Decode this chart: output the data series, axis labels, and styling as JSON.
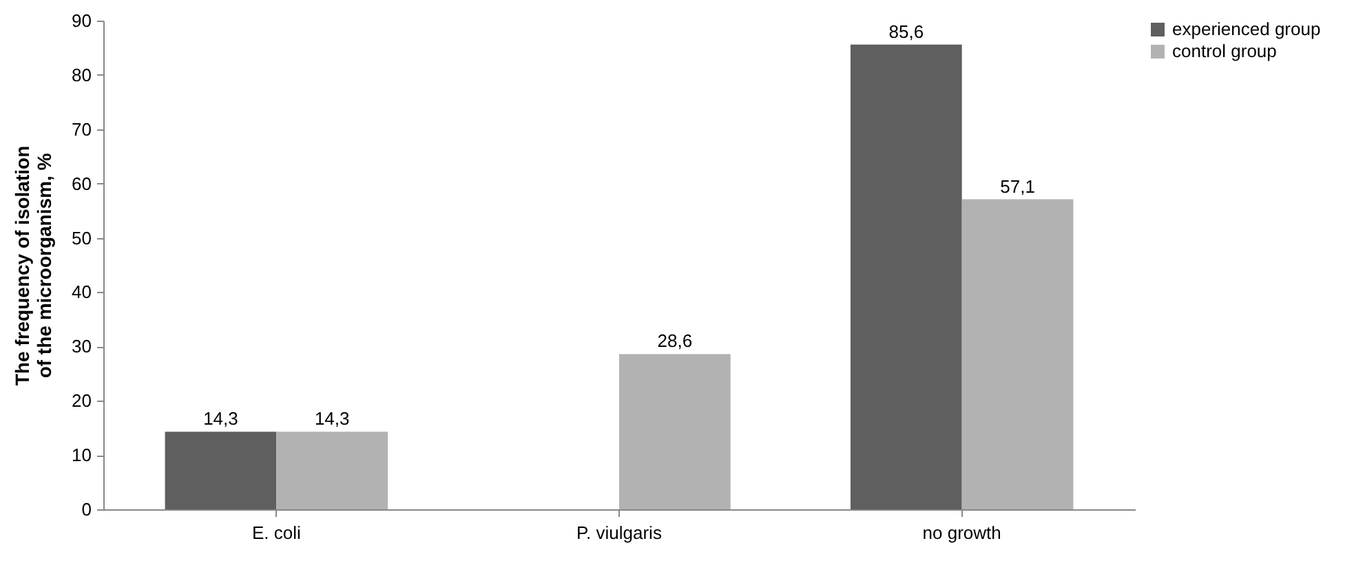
{
  "chart_data": {
    "type": "bar",
    "ylabel": "The frequency of isolation of the microorganism, %",
    "categories": [
      "E. coli",
      "P. viulgaris",
      "no growth"
    ],
    "series": [
      {
        "name": "experienced group",
        "color": "#5f5f5f",
        "values": [
          14.3,
          null,
          85.6
        ],
        "value_labels": [
          "14,3",
          null,
          "85,6"
        ]
      },
      {
        "name": "control group",
        "color": "#b2b2b2",
        "values": [
          14.3,
          28.6,
          57.1
        ],
        "value_labels": [
          "14,3",
          "28,6",
          "57,1"
        ]
      }
    ],
    "ylim": [
      0,
      90
    ],
    "yticks": [
      0,
      10,
      20,
      30,
      40,
      50,
      60,
      70,
      80,
      90
    ],
    "grid": false,
    "legend": "right"
  }
}
